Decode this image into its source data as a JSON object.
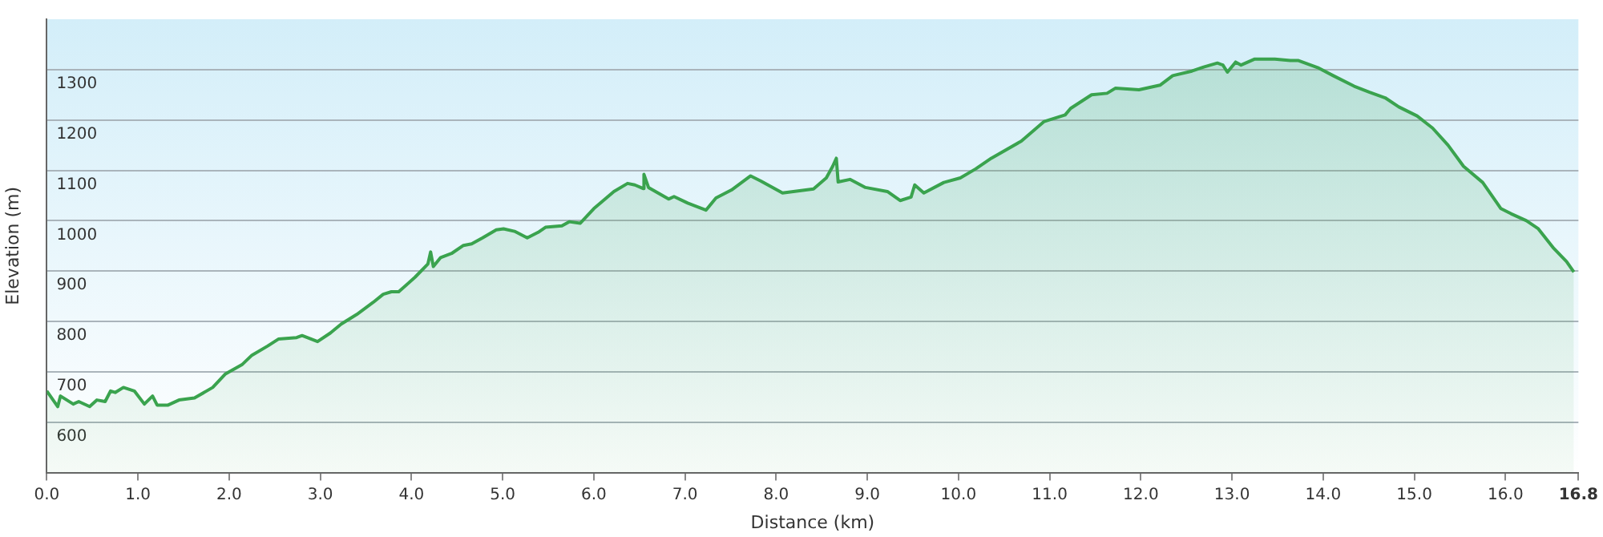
{
  "chart_data": {
    "type": "area",
    "xlabel": "Distance (km)",
    "ylabel": "Elevation (m)",
    "xlim": [
      0,
      16.8
    ],
    "ylim": [
      500,
      1400
    ],
    "xticks": [
      {
        "value": 0,
        "label": "0.0"
      },
      {
        "value": 1,
        "label": "1.0"
      },
      {
        "value": 2,
        "label": "2.0"
      },
      {
        "value": 3,
        "label": "3.0"
      },
      {
        "value": 4,
        "label": "4.0"
      },
      {
        "value": 5,
        "label": "5.0"
      },
      {
        "value": 6,
        "label": "6.0"
      },
      {
        "value": 7,
        "label": "7.0"
      },
      {
        "value": 8,
        "label": "8.0"
      },
      {
        "value": 9,
        "label": "9.0"
      },
      {
        "value": 10,
        "label": "10.0"
      },
      {
        "value": 11,
        "label": "11.0"
      },
      {
        "value": 12,
        "label": "12.0"
      },
      {
        "value": 13,
        "label": "13.0"
      },
      {
        "value": 14,
        "label": "14.0"
      },
      {
        "value": 15,
        "label": "15.0"
      },
      {
        "value": 16,
        "label": "16.0"
      },
      16.8
    ],
    "yticks": [
      600,
      700,
      800,
      900,
      1000,
      1100,
      1200,
      1300
    ],
    "grid": "y",
    "legend": false,
    "marker": "none",
    "line_style": "solid",
    "series": [
      {
        "color": "#3aa34e",
        "x": [
          0,
          0.12,
          0.15,
          0.29,
          0.35,
          0.47,
          0.55,
          0.64,
          0.7,
          0.75,
          0.84,
          0.96,
          1.07,
          1.16,
          1.21,
          1.33,
          1.45,
          1.62,
          1.82,
          1.96,
          2.14,
          2.25,
          2.42,
          2.54,
          2.74,
          2.8,
          2.97,
          3.11,
          3.23,
          3.4,
          3.58,
          3.69,
          3.78,
          3.86,
          4.04,
          4.18,
          4.21,
          4.24,
          4.32,
          4.44,
          4.57,
          4.66,
          4.78,
          4.93,
          5.01,
          5.13,
          5.27,
          5.39,
          5.47,
          5.65,
          5.73,
          5.85,
          6.0,
          6.22,
          6.37,
          6.45,
          6.54,
          6.55,
          6.6,
          6.82,
          6.88,
          7.03,
          7.23,
          7.34,
          7.51,
          7.72,
          7.83,
          8.07,
          8.24,
          8.41,
          8.55,
          8.62,
          8.66,
          8.68,
          8.81,
          8.98,
          9.22,
          9.36,
          9.48,
          9.52,
          9.62,
          9.84,
          10.02,
          10.19,
          10.36,
          10.69,
          10.94,
          11.17,
          11.23,
          11.46,
          11.63,
          11.72,
          11.98,
          12.21,
          12.35,
          12.56,
          12.69,
          12.84,
          12.9,
          12.95,
          13.04,
          13.1,
          13.25,
          13.47,
          13.64,
          13.73,
          13.94,
          14.11,
          14.34,
          14.51,
          14.68,
          14.83,
          15.03,
          15.2,
          15.37,
          15.54,
          15.75,
          15.95,
          16.06,
          16.23,
          16.36,
          16.53,
          16.67,
          16.75
        ],
        "values": [
          662,
          631,
          652,
          636,
          641,
          631,
          644,
          641,
          662,
          659,
          669,
          662,
          636,
          652,
          634,
          634,
          644,
          648,
          669,
          696,
          714,
          733,
          751,
          765,
          768,
          772,
          760,
          777,
          795,
          814,
          838,
          854,
          859,
          859,
          888,
          914,
          938,
          909,
          927,
          935,
          951,
          954,
          966,
          982,
          984,
          979,
          966,
          977,
          987,
          990,
          998,
          995,
          1024,
          1058,
          1074,
          1071,
          1064,
          1092,
          1066,
          1043,
          1048,
          1035,
          1021,
          1045,
          1061,
          1089,
          1079,
          1055,
          1059,
          1063,
          1085,
          1108,
          1124,
          1077,
          1082,
          1066,
          1058,
          1040,
          1047,
          1071,
          1055,
          1076,
          1085,
          1103,
          1124,
          1158,
          1197,
          1210,
          1223,
          1250,
          1253,
          1263,
          1260,
          1269,
          1288,
          1297,
          1305,
          1313,
          1309,
          1295,
          1315,
          1309,
          1321,
          1321,
          1318,
          1318,
          1304,
          1288,
          1267,
          1255,
          1244,
          1226,
          1208,
          1184,
          1150,
          1108,
          1076,
          1024,
          1014,
          1000,
          984,
          945,
          919,
          898
        ]
      }
    ]
  }
}
